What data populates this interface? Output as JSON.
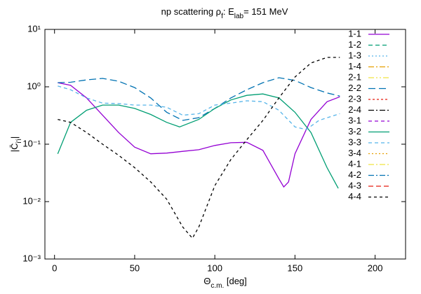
{
  "chart_data": {
    "type": "line",
    "title": [
      "np scattering ρ",
      "f",
      ": E",
      "lab",
      "=  151 MeV"
    ],
    "xlabel": [
      "Θ",
      "c.m.",
      " [deg]"
    ],
    "ylabel": [
      "|C̄",
      "i'i",
      "|"
    ],
    "xlim": [
      -6,
      219
    ],
    "xticks": [
      0,
      50,
      100,
      150,
      200
    ],
    "ylim": [
      0.001,
      10
    ],
    "log_y": true,
    "yticks": [
      {
        "value": 10,
        "label": "10¹"
      },
      {
        "value": 1,
        "label": "10⁰"
      },
      {
        "value": 0.1,
        "label": "10⁻¹"
      },
      {
        "value": 0.01,
        "label": "10⁻²"
      },
      {
        "value": 0.001,
        "label": "10⁻³"
      }
    ],
    "legend": "top-right",
    "series": [
      {
        "name": "1-1",
        "color": "#9400d3",
        "dash": "none",
        "x": [
          2,
          10,
          20,
          30,
          40,
          50,
          60,
          70,
          80,
          90,
          100,
          110,
          120,
          130,
          140,
          143,
          146,
          150,
          160,
          170,
          178
        ],
        "values": [
          1.18,
          1.06,
          0.64,
          0.32,
          0.16,
          0.089,
          0.068,
          0.07,
          0.075,
          0.08,
          0.095,
          0.106,
          0.108,
          0.078,
          0.025,
          0.018,
          0.022,
          0.068,
          0.27,
          0.55,
          0.67
        ]
      },
      {
        "name": "1-2",
        "color": "#009e73",
        "dash": "6,4",
        "x": [],
        "values": []
      },
      {
        "name": "1-3",
        "color": "#56b4e9",
        "dash": "2,3",
        "x": [],
        "values": []
      },
      {
        "name": "1-4",
        "color": "#e69f00",
        "dash": "8,3,2,3",
        "x": [],
        "values": []
      },
      {
        "name": "2-1",
        "color": "#f0e442",
        "dash": "8,3,2,3,2,3",
        "x": [],
        "values": []
      },
      {
        "name": "2-2",
        "color": "#0072b2",
        "dash": "10,5",
        "x": [
          2,
          10,
          20,
          30,
          40,
          50,
          60,
          70,
          80,
          90,
          100,
          110,
          120,
          130,
          140,
          150,
          160,
          170,
          178
        ],
        "values": [
          1.18,
          1.2,
          1.32,
          1.4,
          1.25,
          0.97,
          0.64,
          0.36,
          0.26,
          0.29,
          0.42,
          0.64,
          0.89,
          1.18,
          1.44,
          1.29,
          0.97,
          0.78,
          0.69
        ]
      },
      {
        "name": "2-3",
        "color": "#e51e10",
        "dash": "3,3",
        "x": [],
        "values": []
      },
      {
        "name": "2-4",
        "color": "#000000",
        "dash": "8,3,2,3",
        "x": [],
        "values": []
      },
      {
        "name": "3-1",
        "color": "#9400d3",
        "dash": "5,4",
        "x": [],
        "values": []
      },
      {
        "name": "3-2",
        "color": "#009e73",
        "dash": "none",
        "x": [
          2,
          10,
          20,
          30,
          40,
          50,
          60,
          70,
          78,
          90,
          100,
          110,
          120,
          130,
          140,
          150,
          160,
          170,
          177
        ],
        "values": [
          0.068,
          0.24,
          0.39,
          0.48,
          0.48,
          0.42,
          0.33,
          0.24,
          0.2,
          0.27,
          0.42,
          0.59,
          0.71,
          0.75,
          0.64,
          0.36,
          0.16,
          0.039,
          0.017
        ]
      },
      {
        "name": "3-3",
        "color": "#56b4e9",
        "dash": "5,4",
        "x": [
          2,
          10,
          20,
          30,
          40,
          50,
          60,
          70,
          80,
          90,
          100,
          110,
          120,
          130,
          140,
          150,
          157,
          165,
          178
        ],
        "values": [
          1.03,
          0.89,
          0.64,
          0.52,
          0.51,
          0.48,
          0.48,
          0.44,
          0.32,
          0.34,
          0.48,
          0.52,
          0.57,
          0.55,
          0.39,
          0.2,
          0.18,
          0.26,
          0.34
        ]
      },
      {
        "name": "3-4",
        "color": "#e69f00",
        "dash": "2,3",
        "x": [],
        "values": []
      },
      {
        "name": "4-1",
        "color": "#f0e442",
        "dash": "8,3,2,3",
        "x": [],
        "values": []
      },
      {
        "name": "4-2",
        "color": "#0072b2",
        "dash": "8,3,2,3",
        "x": [],
        "values": []
      },
      {
        "name": "4-3",
        "color": "#e51e10",
        "dash": "7,4",
        "x": [],
        "values": []
      },
      {
        "name": "4-4",
        "color": "#000000",
        "dash": "4,4",
        "x": [
          2,
          10,
          20,
          30,
          40,
          50,
          60,
          70,
          80,
          86,
          90,
          100,
          110,
          120,
          130,
          140,
          150,
          160,
          170,
          178
        ],
        "values": [
          0.27,
          0.24,
          0.16,
          0.1,
          0.064,
          0.039,
          0.022,
          0.011,
          0.0036,
          0.0023,
          0.0036,
          0.019,
          0.054,
          0.12,
          0.26,
          0.64,
          1.48,
          2.6,
          3.25,
          3.25
        ]
      }
    ]
  }
}
